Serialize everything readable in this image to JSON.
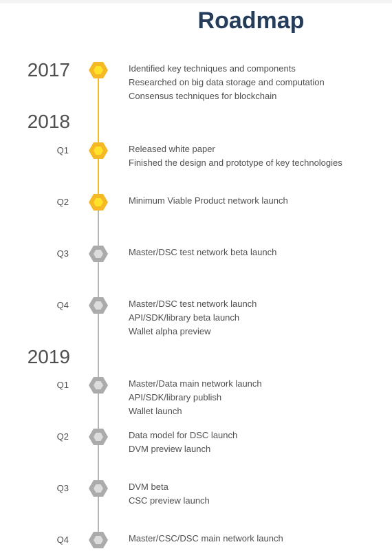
{
  "page": {
    "title": "Roadmap"
  },
  "colors": {
    "done": "#f6b926",
    "done_inner": "#ffe22a",
    "todo": "#ababab",
    "todo_inner": "#dcdcdc"
  },
  "years": [
    {
      "year": "2017",
      "milestones": [
        {
          "quarter": "",
          "status": "done",
          "items": [
            "Identified key techniques and components",
            "Researched on big data storage and computation",
            "Consensus techniques for blockchain"
          ]
        }
      ]
    },
    {
      "year": "2018",
      "milestones": [
        {
          "quarter": "Q1",
          "status": "done",
          "items": [
            "Released white paper",
            "Finished the design and prototype of key technologies"
          ]
        },
        {
          "quarter": "Q2",
          "status": "done",
          "items": [
            "Minimum Viable Product network launch"
          ]
        },
        {
          "quarter": "Q3",
          "status": "pending",
          "items": [
            "Master/DSC test network beta launch"
          ]
        },
        {
          "quarter": "Q4",
          "status": "pending",
          "items": [
            "Master/DSC test network launch",
            "API/SDK/library beta launch",
            "Wallet alpha preview"
          ]
        }
      ]
    },
    {
      "year": "2019",
      "milestones": [
        {
          "quarter": "Q1",
          "status": "pending",
          "items": [
            "Master/Data main network launch",
            "API/SDK/library publish",
            "Wallet launch"
          ]
        },
        {
          "quarter": "Q2",
          "status": "pending",
          "items": [
            "Data model for DSC launch",
            "DVM preview launch"
          ]
        },
        {
          "quarter": "Q3",
          "status": "pending",
          "items": [
            "DVM beta",
            "CSC preview launch"
          ]
        },
        {
          "quarter": "Q4",
          "status": "pending",
          "items": [
            "Master/CSC/DSC main network launch"
          ]
        }
      ]
    }
  ]
}
